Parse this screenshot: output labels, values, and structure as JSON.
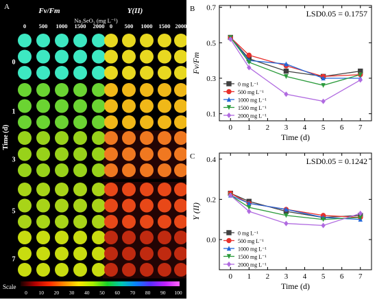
{
  "panel_a": {
    "letter": "A",
    "left_heading": "Fv/Fm",
    "right_heading": "Y(II)",
    "treatment_heading": "Na₂SeO₃ (mg L⁻¹)",
    "dose_labels_left": [
      "0",
      "500",
      "1000",
      "1500",
      "2000"
    ],
    "dose_labels_right": [
      "0",
      "500",
      "1000",
      "1500",
      "2000"
    ],
    "time_labels": [
      "0",
      "1",
      "3",
      "5",
      "7"
    ],
    "axis_label": "Time (d)",
    "scale_label": "Scale",
    "scale_ticks": [
      "0",
      "10",
      "20",
      "30",
      "40",
      "50",
      "60",
      "70",
      "80",
      "90",
      "100"
    ],
    "scale_colors": [
      "#1a0000",
      "#b00000",
      "#ff2a00",
      "#ff8a00",
      "#ffe600",
      "#a8f000",
      "#18d028",
      "#00c8b4",
      "#0a80ff",
      "#5a2cff",
      "#c020ff",
      "#ff66ff"
    ],
    "leaf_colors": {
      "fv": [
        "#3de8c2",
        "#6bd432",
        "#98d21a",
        "#a8d418",
        "#c8dc10"
      ],
      "y": [
        "#e8d820",
        "#f0b818",
        "#f07820",
        "#e84818",
        "#c02a10"
      ]
    }
  },
  "chart_data": [
    {
      "panel": "B",
      "type": "line",
      "ylabel": "Fv/Fm",
      "xlabel": "Time (d)",
      "x": [
        0,
        1,
        3,
        5,
        7
      ],
      "xticks": [
        "0",
        "1",
        "2",
        "3",
        "4",
        "5",
        "6",
        "7"
      ],
      "yticks": [
        "0.1",
        "0.3",
        "0.5",
        "0.7"
      ],
      "xlim": [
        -0.6,
        7.6
      ],
      "ylim": [
        0.06,
        0.71
      ],
      "annotation": "LSD0.05 = 0.1757",
      "grid": false,
      "legend_position": "bottom-left",
      "series": [
        {
          "name": "0 mg L⁻¹",
          "color": "#404040",
          "marker": "square",
          "values": [
            0.53,
            0.41,
            0.34,
            0.31,
            0.34
          ]
        },
        {
          "name": "500 mg L⁻¹",
          "color": "#e8302c",
          "marker": "circle",
          "values": [
            0.53,
            0.43,
            0.37,
            0.31,
            0.32
          ]
        },
        {
          "name": "1000 mg L⁻¹",
          "color": "#2266d8",
          "marker": "triangle-up",
          "values": [
            0.53,
            0.4,
            0.38,
            0.3,
            0.3
          ]
        },
        {
          "name": "1500 mg L⁻¹",
          "color": "#2a9a3a",
          "marker": "triangle-down",
          "values": [
            0.53,
            0.39,
            0.31,
            0.26,
            0.32
          ]
        },
        {
          "name": "2000 mg L⁻¹",
          "color": "#b06ae0",
          "marker": "diamond",
          "values": [
            0.52,
            0.36,
            0.21,
            0.17,
            0.29
          ]
        }
      ]
    },
    {
      "panel": "C",
      "type": "line",
      "ylabel": "Y (II)",
      "xlabel": "Time (d)",
      "x": [
        0,
        1,
        3,
        5,
        7
      ],
      "xticks": [
        "0",
        "1",
        "2",
        "3",
        "4",
        "5",
        "6",
        "7"
      ],
      "yticks": [
        "0.0",
        "0.2",
        "0.4"
      ],
      "xlim": [
        -0.6,
        7.6
      ],
      "ylim": [
        -0.15,
        0.43
      ],
      "annotation": "LSD0.05 = 0.1242",
      "grid": false,
      "legend_position": "bottom-left",
      "series": [
        {
          "name": "0 mg L⁻¹",
          "color": "#404040",
          "marker": "square",
          "values": [
            0.23,
            0.19,
            0.14,
            0.11,
            0.12
          ]
        },
        {
          "name": "500 mg L⁻¹",
          "color": "#e8302c",
          "marker": "circle",
          "values": [
            0.23,
            0.18,
            0.15,
            0.12,
            0.11
          ]
        },
        {
          "name": "1000 mg L⁻¹",
          "color": "#2266d8",
          "marker": "triangle-up",
          "values": [
            0.22,
            0.18,
            0.15,
            0.11,
            0.1
          ]
        },
        {
          "name": "1500 mg L⁻¹",
          "color": "#2a9a3a",
          "marker": "triangle-down",
          "values": [
            0.22,
            0.16,
            0.12,
            0.1,
            0.11
          ]
        },
        {
          "name": "2000 mg L⁻¹",
          "color": "#b06ae0",
          "marker": "diamond",
          "values": [
            0.22,
            0.14,
            0.08,
            0.07,
            0.13
          ]
        }
      ]
    }
  ]
}
